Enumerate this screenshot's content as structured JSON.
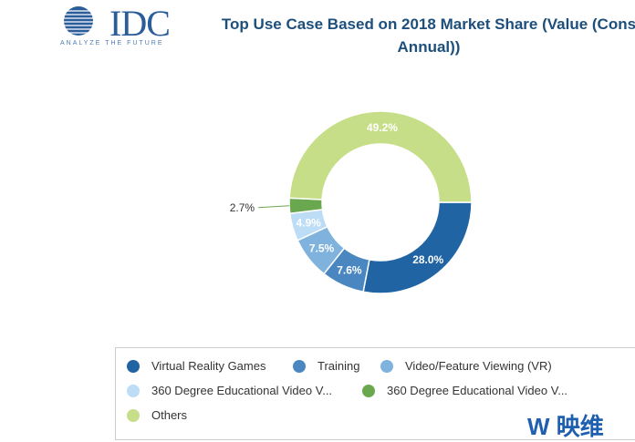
{
  "logo": {
    "text": "IDC",
    "tagline": "ANALYZE THE FUTURE"
  },
  "watermark": "映维网",
  "chart_data": {
    "type": "pie",
    "donut": true,
    "title": "Top Use Case Based on 2018 Market Share (Value (Cons Annual))",
    "title_line1": "Top Use Case Based on 2018 Market Share (Value (Cons",
    "title_line2": "Annual))",
    "legend_position": "bottom",
    "slices": [
      {
        "name": "Virtual Reality Games",
        "value": 28.0,
        "label": "28.0%",
        "color": "#2064a4"
      },
      {
        "name": "Training",
        "value": 7.6,
        "label": "7.6%",
        "color": "#4a87c1"
      },
      {
        "name": "Video/Feature Viewing (VR)",
        "value": 7.5,
        "label": "7.5%",
        "color": "#7fb3de"
      },
      {
        "name": "360 Degree Educational Video V...",
        "value": 4.9,
        "label": "4.9%",
        "color": "#bddcf6"
      },
      {
        "name": "360 Degree Educational Video V...",
        "value": 2.7,
        "label": "2.7%",
        "color": "#6aa84f"
      },
      {
        "name": "Others",
        "value": 49.2,
        "label": "49.2%",
        "color": "#c6de87"
      }
    ]
  }
}
